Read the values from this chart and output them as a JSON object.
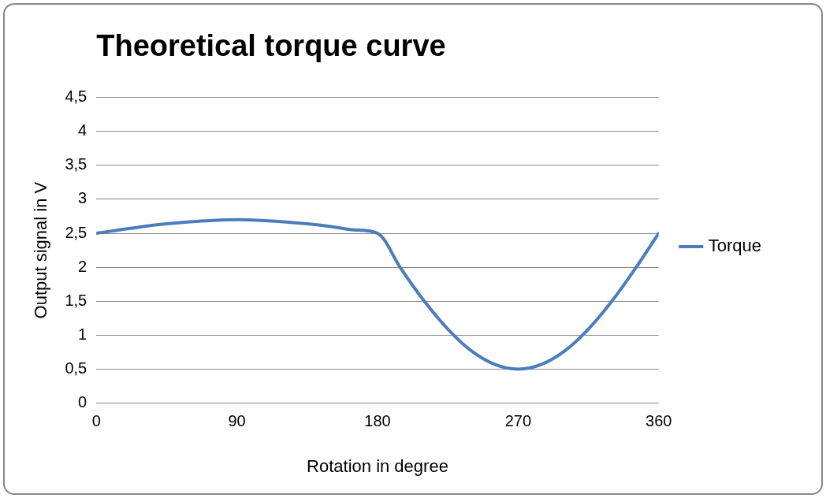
{
  "chart_data": {
    "type": "line",
    "title": "Theoretical torque curve",
    "xlabel": "Rotation in degree",
    "ylabel": "Output signal in V",
    "x": [
      0,
      15,
      30,
      45,
      60,
      75,
      90,
      105,
      120,
      135,
      150,
      165,
      180,
      195,
      210,
      225,
      240,
      255,
      270,
      285,
      300,
      315,
      330,
      345,
      360
    ],
    "series": [
      {
        "name": "Torque",
        "color": "#4a7ebb",
        "values": [
          2.5,
          2.55,
          2.6,
          2.64,
          2.67,
          2.69,
          2.7,
          2.69,
          2.67,
          2.64,
          2.6,
          2.55,
          2.5,
          1.98,
          1.5,
          1.09,
          0.77,
          0.57,
          0.5,
          0.57,
          0.77,
          1.09,
          1.5,
          1.98,
          2.5
        ]
      }
    ],
    "xlim": [
      0,
      360
    ],
    "xticks": [
      0,
      90,
      180,
      270,
      360
    ],
    "ylim": [
      0,
      4.5
    ],
    "yticks": [
      0,
      {
        "value": 0.5,
        "label": "0,5"
      },
      1,
      {
        "value": 1.5,
        "label": "1,5"
      },
      2,
      {
        "value": 2.5,
        "label": "2,5"
      },
      3,
      {
        "value": 3.5,
        "label": "3,5"
      },
      4,
      {
        "value": 4.5,
        "label": "4,5"
      }
    ],
    "grid": "y",
    "legend": "right",
    "marker": "none",
    "line_style": "solid"
  }
}
